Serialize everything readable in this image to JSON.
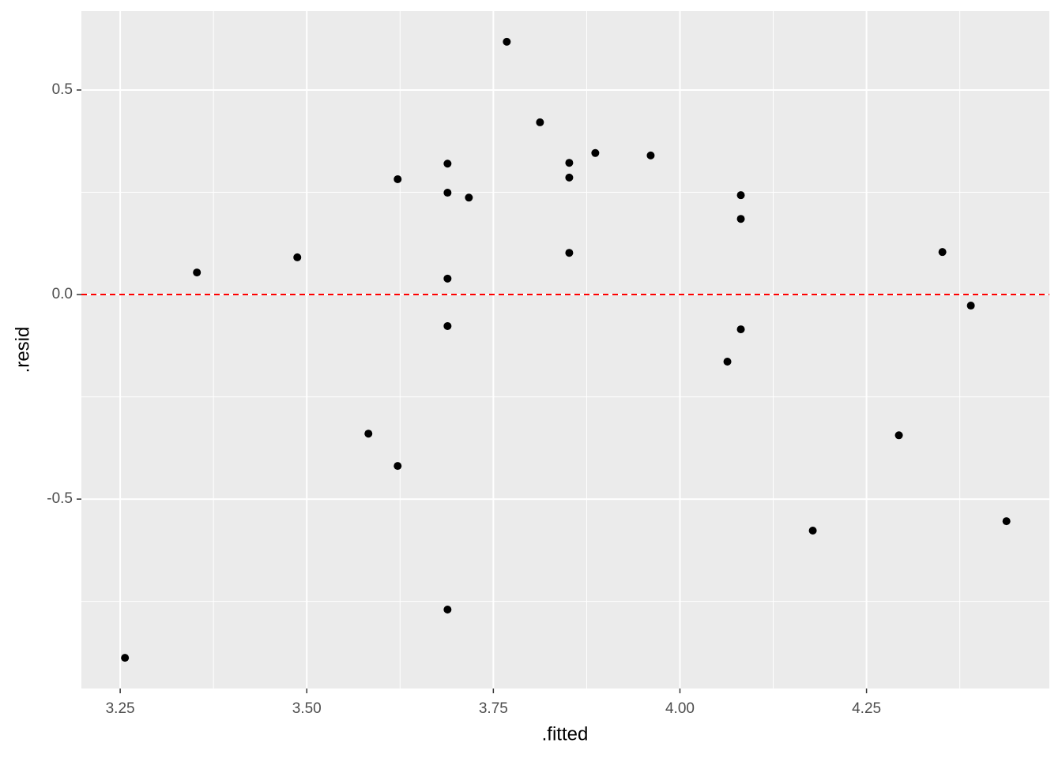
{
  "chart_data": {
    "type": "scatter",
    "x_label": ".fitted",
    "y_label": ".resid",
    "x": [
      3.2564,
      3.3528,
      3.4873,
      3.5826,
      3.6218,
      3.6218,
      3.6886,
      3.6886,
      3.6886,
      3.6886,
      3.6886,
      3.7172,
      3.768,
      3.8125,
      3.8517,
      3.8517,
      3.8517,
      3.8866,
      3.9608,
      4.0816,
      4.0816,
      4.0816,
      4.0636,
      4.178,
      4.2934,
      4.3517,
      4.3898,
      4.4375
    ],
    "values": [
      -0.888,
      0.054,
      0.091,
      -0.34,
      0.282,
      -0.419,
      0.32,
      0.249,
      0.039,
      -0.077,
      -0.77,
      0.237,
      0.618,
      0.421,
      0.322,
      0.286,
      0.102,
      0.346,
      0.34,
      0.243,
      0.185,
      -0.085,
      -0.164,
      -0.577,
      -0.344,
      0.104,
      -0.027,
      -0.554
    ],
    "color": "#000000",
    "xlim": [
      3.198,
      4.495
    ],
    "ylim": [
      -0.963,
      0.693
    ],
    "xticks": [
      {
        "value": 3.25,
        "label": "3.25"
      },
      {
        "value": 3.5,
        "label": "3.50"
      },
      {
        "value": 3.75,
        "label": "3.75"
      },
      {
        "value": 4.0,
        "label": "4.00"
      },
      {
        "value": 4.25,
        "label": "4.25"
      }
    ],
    "yticks": [
      -0.5,
      {
        "value": 0,
        "label": "0.0"
      },
      0.5
    ],
    "x_minor_ticks": [
      3.375,
      3.625,
      3.875,
      4.125,
      4.375
    ],
    "y_minor_ticks": [
      -0.75,
      -0.25,
      0.25
    ],
    "grid": true,
    "hline": {
      "value": 0,
      "color": "#ff0000"
    }
  }
}
